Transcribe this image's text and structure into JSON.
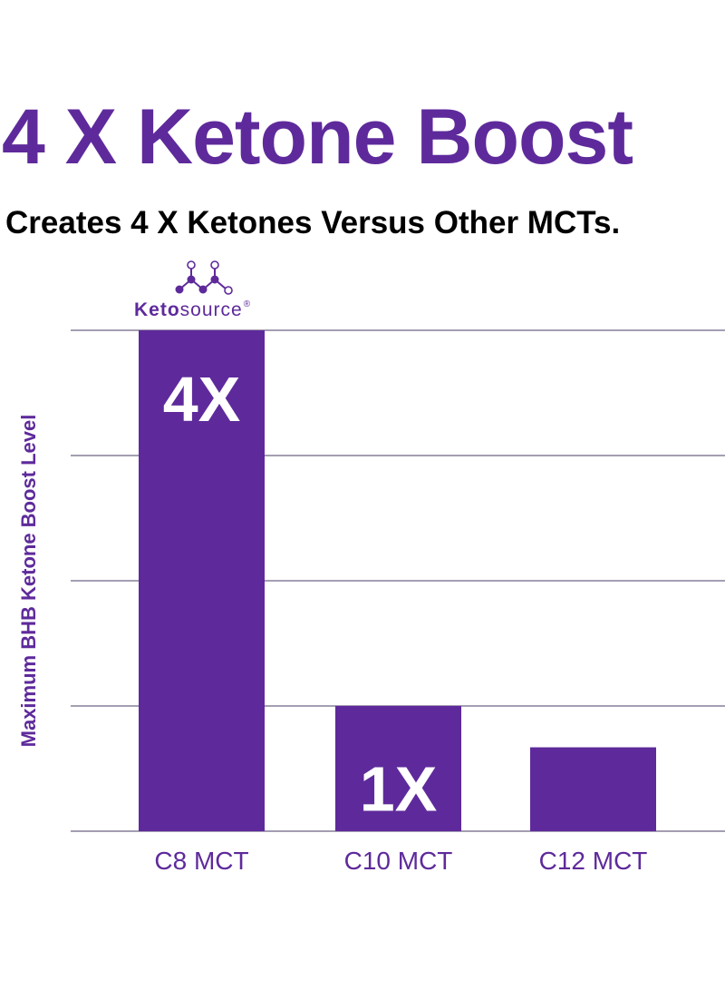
{
  "colors": {
    "brand": "#5e2a9b",
    "grid": "#6e6585",
    "text_dark": "#000000",
    "bar_label": "#ffffff"
  },
  "title": "4 X Ketone Boost",
  "subtitle": "Creates 4 X Ketones Versus Other MCTs.",
  "logo": {
    "name_bold": "Keto",
    "name_regular": "source",
    "registered": "®",
    "icon": "molecule-icon"
  },
  "chart_data": {
    "type": "bar",
    "categories": [
      "C8 MCT",
      "C10 MCT",
      "C12 MCT"
    ],
    "values": [
      4,
      1,
      0.67
    ],
    "bar_labels": [
      "4X",
      "1X",
      ""
    ],
    "ylabel": "Maximum BHB Ketone Boost Level",
    "ylim": [
      0,
      4
    ],
    "gridlines": [
      0,
      1,
      2,
      3,
      4
    ],
    "grid": true,
    "legend": "none"
  }
}
